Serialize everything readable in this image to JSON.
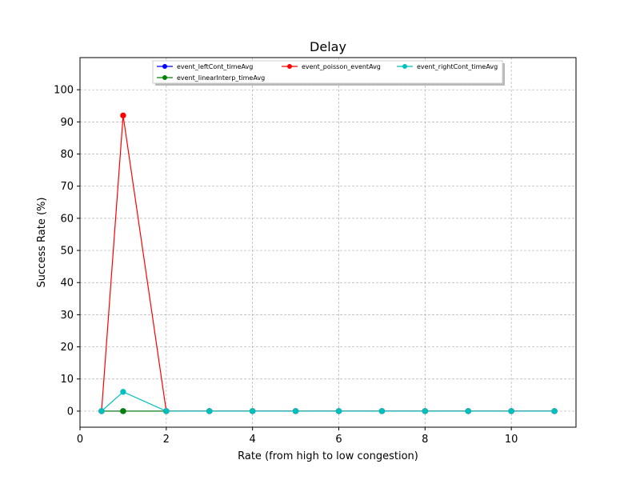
{
  "chart_data": {
    "type": "line",
    "title": "Delay",
    "xlabel": "Rate (from high to low congestion)",
    "ylabel": "Success Rate (%)",
    "xlim": [
      0,
      11.5
    ],
    "ylim": [
      -5,
      110
    ],
    "xticks": [
      0,
      2,
      4,
      6,
      8,
      10
    ],
    "yticks": [
      0,
      10,
      20,
      30,
      40,
      50,
      60,
      70,
      80,
      90,
      100
    ],
    "grid": true,
    "legend_position": "top-center",
    "x": [
      0.5,
      1,
      2,
      3,
      4,
      5,
      6,
      7,
      8,
      9,
      10,
      11
    ],
    "series": [
      {
        "name": "event_leftCont_timeAvg",
        "color": "#0000ff",
        "values": [
          0,
          0,
          0,
          0,
          0,
          0,
          0,
          0,
          0,
          0,
          0,
          0
        ]
      },
      {
        "name": "event_linearInterp_timeAvg",
        "color": "#008000",
        "values": [
          0,
          0,
          0,
          0,
          0,
          0,
          0,
          0,
          0,
          0,
          0,
          0
        ]
      },
      {
        "name": "event_poisson_eventAvg",
        "color": "#ff0000",
        "values": [
          0,
          92,
          0,
          0,
          0,
          0,
          0,
          0,
          0,
          0,
          0,
          0
        ]
      },
      {
        "name": "event_rightCont_timeAvg",
        "color": "#00bfbf",
        "values": [
          0,
          6,
          0,
          0,
          0,
          0,
          0,
          0,
          0,
          0,
          0,
          0
        ]
      }
    ]
  }
}
